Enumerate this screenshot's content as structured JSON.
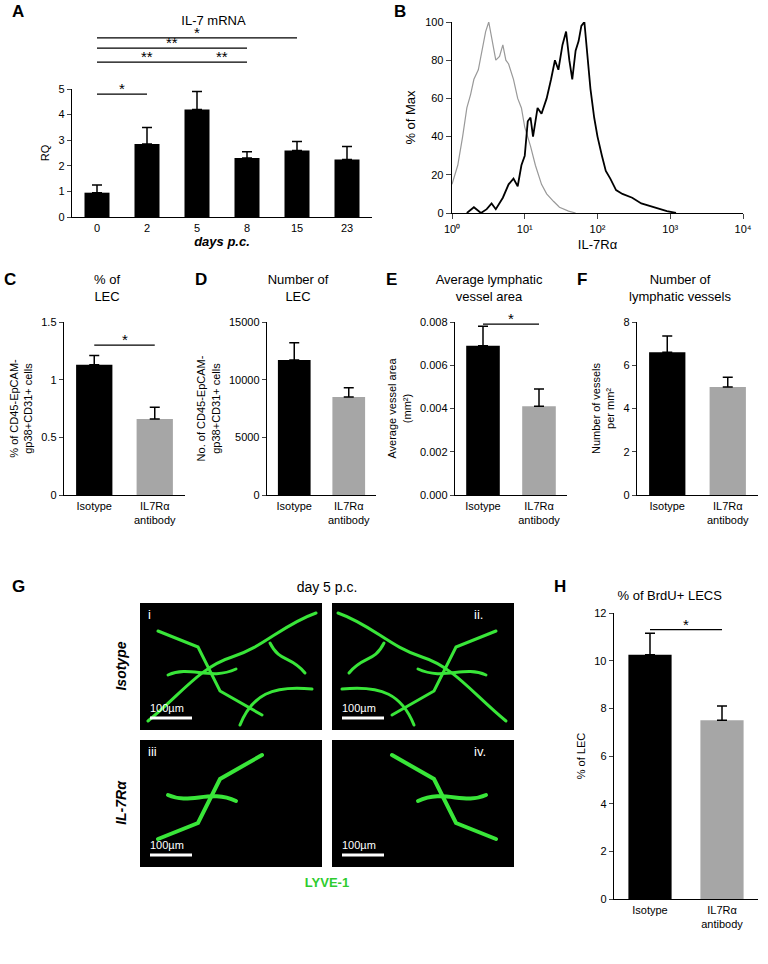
{
  "chart_data": [
    {
      "panel": "A",
      "type": "bar",
      "title": "IL-7 mRNA",
      "x_label": "days p.c.",
      "y_label": "RQ",
      "categories": [
        "0",
        "2",
        "5",
        "8",
        "15",
        "23"
      ],
      "values": [
        0.95,
        2.85,
        4.2,
        2.3,
        2.6,
        2.25
      ],
      "errors": [
        0.3,
        0.65,
        0.7,
        0.25,
        0.35,
        0.5
      ],
      "color": "#000000",
      "ylim": [
        0,
        5
      ],
      "yticks": [
        0,
        1,
        2,
        3,
        4,
        5
      ],
      "significance": [
        {
          "from": "0",
          "to": "2",
          "y": 4.8,
          "label": "*"
        },
        {
          "from": "0",
          "to": "5",
          "y": 6.05,
          "label": "**"
        },
        {
          "from": "5",
          "to": "8",
          "y": 6.05,
          "label": "**"
        },
        {
          "from": "0",
          "to": "8",
          "y": 6.6,
          "label": "**"
        },
        {
          "from": "0",
          "to": "15",
          "y": 7.0,
          "label": "*"
        }
      ]
    },
    {
      "panel": "B",
      "type": "line",
      "x_label": "IL-7Rα",
      "y_label": "% of Max",
      "log": "x",
      "xlim": [
        1,
        10000
      ],
      "xticks": [
        {
          "value": 1,
          "label": "10⁰"
        },
        {
          "value": 10,
          "label": "10¹"
        },
        {
          "value": 100,
          "label": "10²"
        },
        {
          "value": 1000,
          "label": "10³"
        },
        {
          "value": 10000,
          "label": "10⁴"
        }
      ],
      "ylim": [
        0,
        100
      ],
      "yticks": [
        0,
        20,
        40,
        60,
        80,
        100
      ],
      "series": [
        {
          "color": "#999999",
          "x": [
            1,
            1.2,
            1.4,
            1.6,
            1.8,
            2,
            2.3,
            2.6,
            2.9,
            3.2,
            3.6,
            4,
            4.5,
            5,
            5.5,
            6,
            7,
            8,
            9,
            10,
            12,
            14,
            17,
            20,
            25,
            30,
            40,
            50
          ],
          "values": [
            15,
            25,
            40,
            55,
            62,
            70,
            75,
            85,
            95,
            100,
            90,
            80,
            82,
            88,
            80,
            78,
            70,
            60,
            55,
            45,
            35,
            25,
            15,
            10,
            6,
            3,
            1,
            0
          ]
        },
        {
          "color": "#000000",
          "x": [
            1.6,
            2,
            2.5,
            3,
            3.5,
            4,
            5,
            6,
            7,
            8,
            9,
            10,
            11,
            12,
            13,
            15,
            17,
            20,
            23,
            26,
            29,
            33,
            37,
            41,
            45,
            50,
            55,
            60,
            66,
            72,
            80,
            90,
            100,
            115,
            130,
            150,
            180,
            220,
            300,
            400,
            600,
            900,
            1200
          ],
          "values": [
            0,
            3,
            0,
            2,
            5,
            2,
            8,
            15,
            18,
            14,
            25,
            30,
            48,
            50,
            40,
            55,
            52,
            60,
            70,
            80,
            75,
            88,
            95,
            80,
            70,
            85,
            90,
            98,
            100,
            85,
            65,
            50,
            40,
            30,
            22,
            18,
            12,
            10,
            8,
            5,
            3,
            1,
            0
          ]
        }
      ]
    },
    {
      "panel": "C",
      "type": "bar",
      "title": "% of\nLEC",
      "y_label": "% of CD45-EpCAM-\ngp38+CD31+ cells",
      "categories": [
        "Isotype",
        "IL7Rα\nantibody"
      ],
      "values": [
        1.13,
        0.66
      ],
      "errors": [
        0.08,
        0.1
      ],
      "colors": [
        "#000000",
        "#a6a6a6"
      ],
      "ylim": [
        0,
        1.5
      ],
      "yticks": [
        0,
        0.5,
        1,
        1.5
      ],
      "significance": [
        {
          "from": "Isotype",
          "to": "IL7Rα\nantibody",
          "y": 1.3,
          "label": "*"
        }
      ]
    },
    {
      "panel": "D",
      "type": "bar",
      "title": "Number of\nLEC",
      "y_label": "No. of CD45-EpCAM-\ngp38+CD31+ cells",
      "categories": [
        "Isotype",
        "IL7Rα\nantibody"
      ],
      "values": [
        11700,
        8500
      ],
      "errors": [
        1500,
        800
      ],
      "colors": [
        "#000000",
        "#a6a6a6"
      ],
      "ylim": [
        0,
        15000
      ],
      "yticks": [
        0,
        5000,
        10000,
        15000
      ]
    },
    {
      "panel": "E",
      "type": "bar",
      "title": "Average lymphatic\nvessel area",
      "y_label": "Average vessel area\n(mm²)",
      "categories": [
        "Isotype",
        "IL7Rα\nantibody"
      ],
      "values": [
        0.0069,
        0.0041
      ],
      "errors": [
        0.0009,
        0.0008
      ],
      "colors": [
        "#000000",
        "#a6a6a6"
      ],
      "ylim": [
        0,
        0.008
      ],
      "yticks": [
        {
          "value": 0,
          "label": "0.000"
        },
        {
          "value": 0.002,
          "label": "0.002"
        },
        {
          "value": 0.004,
          "label": "0.004"
        },
        {
          "value": 0.006,
          "label": "0.006"
        },
        {
          "value": 0.008,
          "label": "0.008"
        }
      ],
      "significance": [
        {
          "from": "Isotype",
          "to": "IL7Rα\nantibody",
          "y": 0.0079,
          "label": "*"
        }
      ]
    },
    {
      "panel": "F",
      "type": "bar",
      "title": "Number of\nlymphatic vessels",
      "y_label": "Number of vessels\nper mm²",
      "categories": [
        "Isotype",
        "IL7Rα\nantibody"
      ],
      "values": [
        6.6,
        5.0
      ],
      "errors": [
        0.75,
        0.45
      ],
      "colors": [
        "#000000",
        "#a6a6a6"
      ],
      "ylim": [
        0,
        8
      ],
      "yticks": [
        0,
        2,
        4,
        6,
        8
      ]
    },
    {
      "panel": "G",
      "type": "image",
      "title": "day 5 p.c.",
      "rows": [
        "Isotype",
        "IL-7Rα"
      ],
      "labels": [
        "i",
        "ii.",
        "iii",
        "iv."
      ],
      "scale_bar": "100µm",
      "stain": "LYVE-1"
    },
    {
      "panel": "H",
      "type": "bar",
      "title": "% of BrdU+ LECS",
      "y_label": "% of LEC",
      "categories": [
        "Isotype",
        "IL7Rα\nantibody"
      ],
      "values": [
        10.25,
        7.5
      ],
      "errors": [
        0.9,
        0.6
      ],
      "colors": [
        "#000000",
        "#a6a6a6"
      ],
      "ylim": [
        0,
        12
      ],
      "yticks": [
        0,
        2,
        4,
        6,
        8,
        10,
        12
      ],
      "significance": [
        {
          "from": "Isotype",
          "to": "IL7Rα\nantibody",
          "y": 11.3,
          "label": "*"
        }
      ]
    }
  ]
}
